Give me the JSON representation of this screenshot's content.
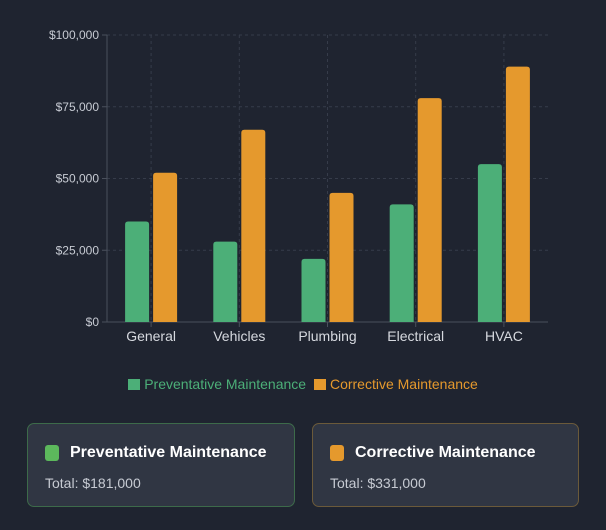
{
  "chart_data": {
    "type": "bar",
    "categories": [
      "General",
      "Vehicles",
      "Plumbing",
      "Electrical",
      "HVAC"
    ],
    "series": [
      {
        "name": "Preventative Maintenance",
        "color": "#4caf78",
        "values": [
          35000,
          28000,
          22000,
          41000,
          55000
        ]
      },
      {
        "name": "Corrective Maintenance",
        "color": "#e5992d",
        "values": [
          52000,
          67000,
          45000,
          78000,
          89000
        ]
      }
    ],
    "ylim": [
      0,
      100000
    ],
    "yticks": [
      "$0",
      "$25,000",
      "$50,000",
      "$75,000",
      "$100,000"
    ],
    "ytick_values": [
      0,
      25000,
      50000,
      75000,
      100000
    ],
    "grid": true,
    "legend": "bottom"
  },
  "cards": [
    {
      "title": "Preventative Maintenance",
      "total": "Total: $181,000",
      "color": "#5cb85c",
      "border": "#3d6b4a"
    },
    {
      "title": "Corrective Maintenance",
      "total": "Total: $331,000",
      "color": "#e5992d",
      "border": "#6b5a3a"
    }
  ]
}
